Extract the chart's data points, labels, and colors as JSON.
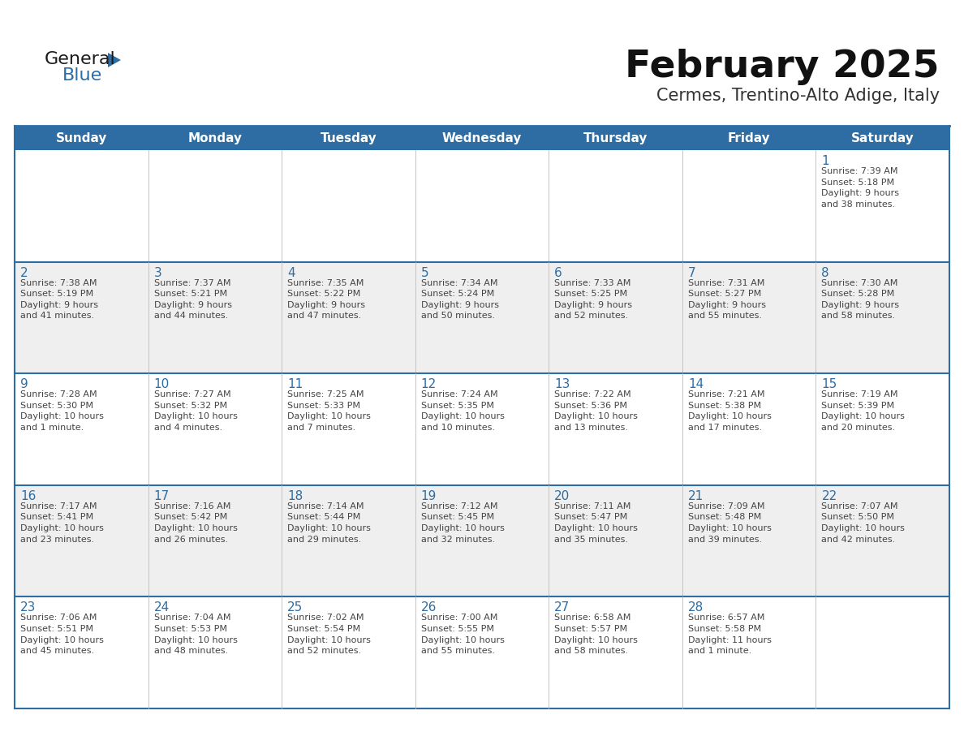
{
  "title": "February 2025",
  "subtitle": "Cermes, Trentino-Alto Adige, Italy",
  "days_of_week": [
    "Sunday",
    "Monday",
    "Tuesday",
    "Wednesday",
    "Thursday",
    "Friday",
    "Saturday"
  ],
  "header_bg": "#2E6DA4",
  "header_text": "#FFFFFF",
  "cell_bg_odd": "#EFEFEF",
  "cell_bg_even": "#FFFFFF",
  "border_color": "#2E6DA4",
  "row_border_color": "#2E6DA4",
  "day_num_color": "#2E6DA4",
  "cell_text_color": "#444444",
  "title_color": "#111111",
  "subtitle_color": "#333333",
  "logo_general_color": "#1A1A1A",
  "logo_blue_color": "#2E6DA4",
  "calendar_data": [
    [
      {
        "day": "",
        "info": ""
      },
      {
        "day": "",
        "info": ""
      },
      {
        "day": "",
        "info": ""
      },
      {
        "day": "",
        "info": ""
      },
      {
        "day": "",
        "info": ""
      },
      {
        "day": "",
        "info": ""
      },
      {
        "day": "1",
        "info": "Sunrise: 7:39 AM\nSunset: 5:18 PM\nDaylight: 9 hours\nand 38 minutes."
      }
    ],
    [
      {
        "day": "2",
        "info": "Sunrise: 7:38 AM\nSunset: 5:19 PM\nDaylight: 9 hours\nand 41 minutes."
      },
      {
        "day": "3",
        "info": "Sunrise: 7:37 AM\nSunset: 5:21 PM\nDaylight: 9 hours\nand 44 minutes."
      },
      {
        "day": "4",
        "info": "Sunrise: 7:35 AM\nSunset: 5:22 PM\nDaylight: 9 hours\nand 47 minutes."
      },
      {
        "day": "5",
        "info": "Sunrise: 7:34 AM\nSunset: 5:24 PM\nDaylight: 9 hours\nand 50 minutes."
      },
      {
        "day": "6",
        "info": "Sunrise: 7:33 AM\nSunset: 5:25 PM\nDaylight: 9 hours\nand 52 minutes."
      },
      {
        "day": "7",
        "info": "Sunrise: 7:31 AM\nSunset: 5:27 PM\nDaylight: 9 hours\nand 55 minutes."
      },
      {
        "day": "8",
        "info": "Sunrise: 7:30 AM\nSunset: 5:28 PM\nDaylight: 9 hours\nand 58 minutes."
      }
    ],
    [
      {
        "day": "9",
        "info": "Sunrise: 7:28 AM\nSunset: 5:30 PM\nDaylight: 10 hours\nand 1 minute."
      },
      {
        "day": "10",
        "info": "Sunrise: 7:27 AM\nSunset: 5:32 PM\nDaylight: 10 hours\nand 4 minutes."
      },
      {
        "day": "11",
        "info": "Sunrise: 7:25 AM\nSunset: 5:33 PM\nDaylight: 10 hours\nand 7 minutes."
      },
      {
        "day": "12",
        "info": "Sunrise: 7:24 AM\nSunset: 5:35 PM\nDaylight: 10 hours\nand 10 minutes."
      },
      {
        "day": "13",
        "info": "Sunrise: 7:22 AM\nSunset: 5:36 PM\nDaylight: 10 hours\nand 13 minutes."
      },
      {
        "day": "14",
        "info": "Sunrise: 7:21 AM\nSunset: 5:38 PM\nDaylight: 10 hours\nand 17 minutes."
      },
      {
        "day": "15",
        "info": "Sunrise: 7:19 AM\nSunset: 5:39 PM\nDaylight: 10 hours\nand 20 minutes."
      }
    ],
    [
      {
        "day": "16",
        "info": "Sunrise: 7:17 AM\nSunset: 5:41 PM\nDaylight: 10 hours\nand 23 minutes."
      },
      {
        "day": "17",
        "info": "Sunrise: 7:16 AM\nSunset: 5:42 PM\nDaylight: 10 hours\nand 26 minutes."
      },
      {
        "day": "18",
        "info": "Sunrise: 7:14 AM\nSunset: 5:44 PM\nDaylight: 10 hours\nand 29 minutes."
      },
      {
        "day": "19",
        "info": "Sunrise: 7:12 AM\nSunset: 5:45 PM\nDaylight: 10 hours\nand 32 minutes."
      },
      {
        "day": "20",
        "info": "Sunrise: 7:11 AM\nSunset: 5:47 PM\nDaylight: 10 hours\nand 35 minutes."
      },
      {
        "day": "21",
        "info": "Sunrise: 7:09 AM\nSunset: 5:48 PM\nDaylight: 10 hours\nand 39 minutes."
      },
      {
        "day": "22",
        "info": "Sunrise: 7:07 AM\nSunset: 5:50 PM\nDaylight: 10 hours\nand 42 minutes."
      }
    ],
    [
      {
        "day": "23",
        "info": "Sunrise: 7:06 AM\nSunset: 5:51 PM\nDaylight: 10 hours\nand 45 minutes."
      },
      {
        "day": "24",
        "info": "Sunrise: 7:04 AM\nSunset: 5:53 PM\nDaylight: 10 hours\nand 48 minutes."
      },
      {
        "day": "25",
        "info": "Sunrise: 7:02 AM\nSunset: 5:54 PM\nDaylight: 10 hours\nand 52 minutes."
      },
      {
        "day": "26",
        "info": "Sunrise: 7:00 AM\nSunset: 5:55 PM\nDaylight: 10 hours\nand 55 minutes."
      },
      {
        "day": "27",
        "info": "Sunrise: 6:58 AM\nSunset: 5:57 PM\nDaylight: 10 hours\nand 58 minutes."
      },
      {
        "day": "28",
        "info": "Sunrise: 6:57 AM\nSunset: 5:58 PM\nDaylight: 11 hours\nand 1 minute."
      },
      {
        "day": "",
        "info": ""
      }
    ]
  ]
}
